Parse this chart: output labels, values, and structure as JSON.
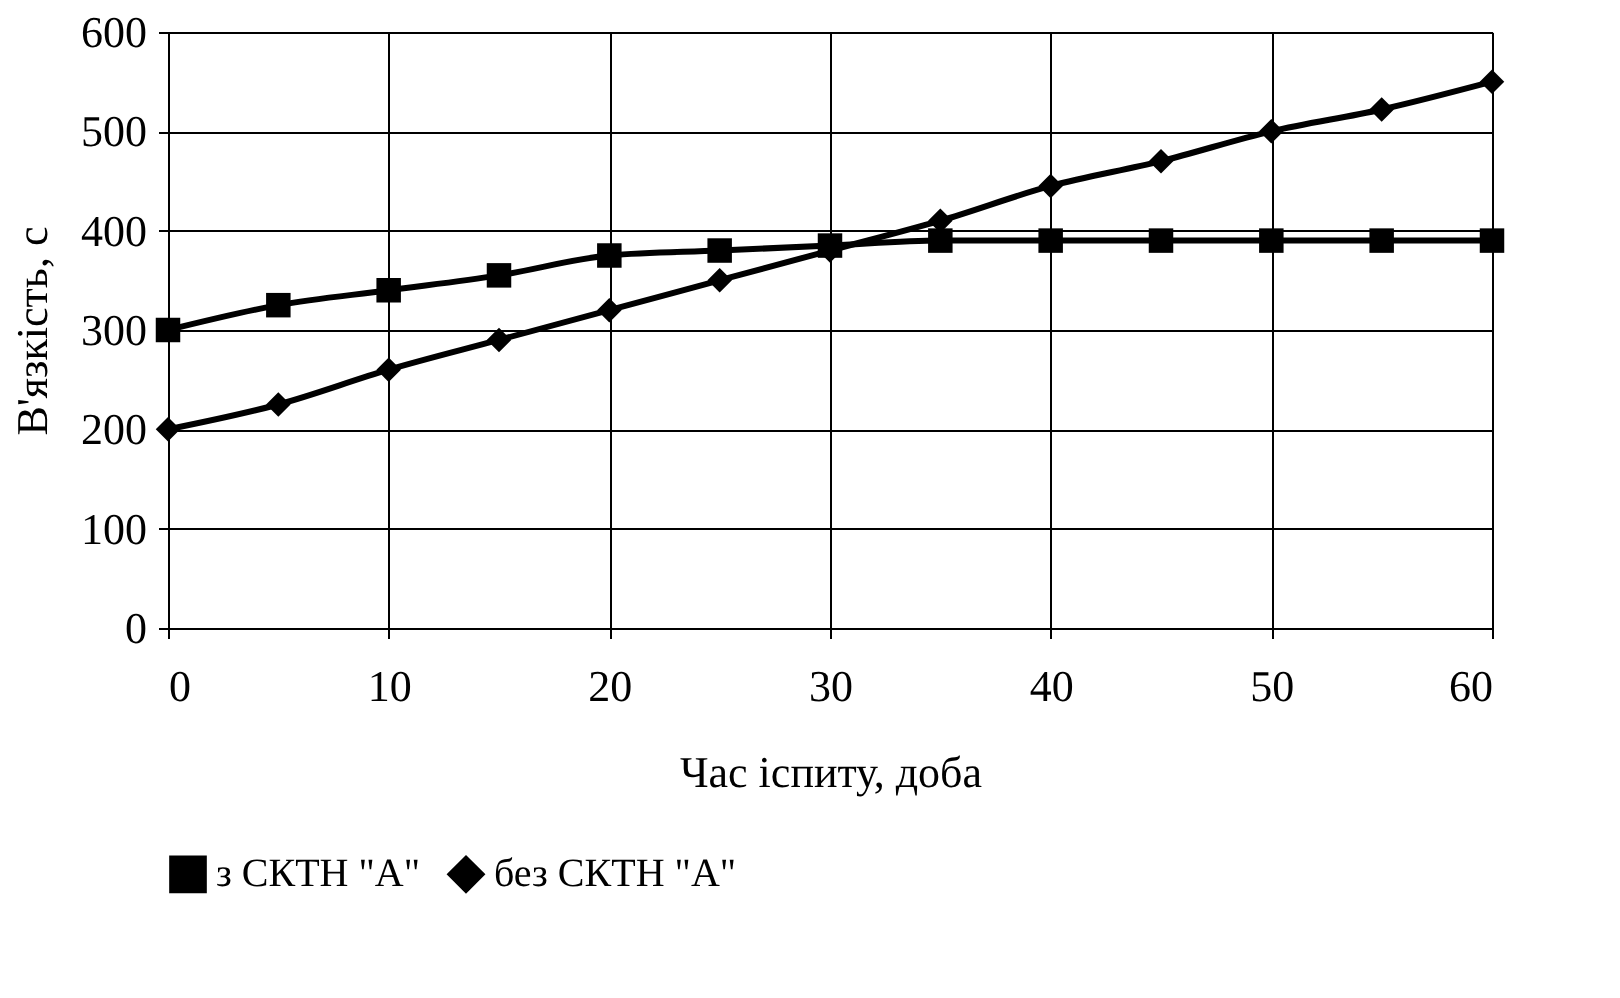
{
  "chart_data": {
    "type": "line",
    "xlabel": "Час іспиту, доба",
    "ylabel": "В'язкість, с",
    "x": [
      0,
      5,
      10,
      15,
      20,
      25,
      30,
      35,
      40,
      45,
      50,
      55,
      60
    ],
    "series": [
      {
        "name": "з СКТН \"А\"",
        "color": "#000000",
        "marker": "square",
        "values": [
          300,
          325,
          340,
          355,
          375,
          380,
          385,
          390,
          390,
          390,
          390,
          390,
          390
        ]
      },
      {
        "name": "без СКТН \"А\"",
        "color": "#000000",
        "marker": "diamond",
        "values": [
          200,
          225,
          260,
          290,
          320,
          350,
          380,
          410,
          445,
          470,
          500,
          522,
          550
        ]
      }
    ],
    "xlim": [
      0,
      60
    ],
    "xticks": [
      0,
      10,
      20,
      30,
      40,
      50,
      60
    ],
    "ylim": [
      0,
      600
    ],
    "yticks": [
      0,
      100,
      200,
      300,
      400,
      500,
      600
    ],
    "grid": true,
    "legend": "bottom",
    "line_style": "solid"
  }
}
